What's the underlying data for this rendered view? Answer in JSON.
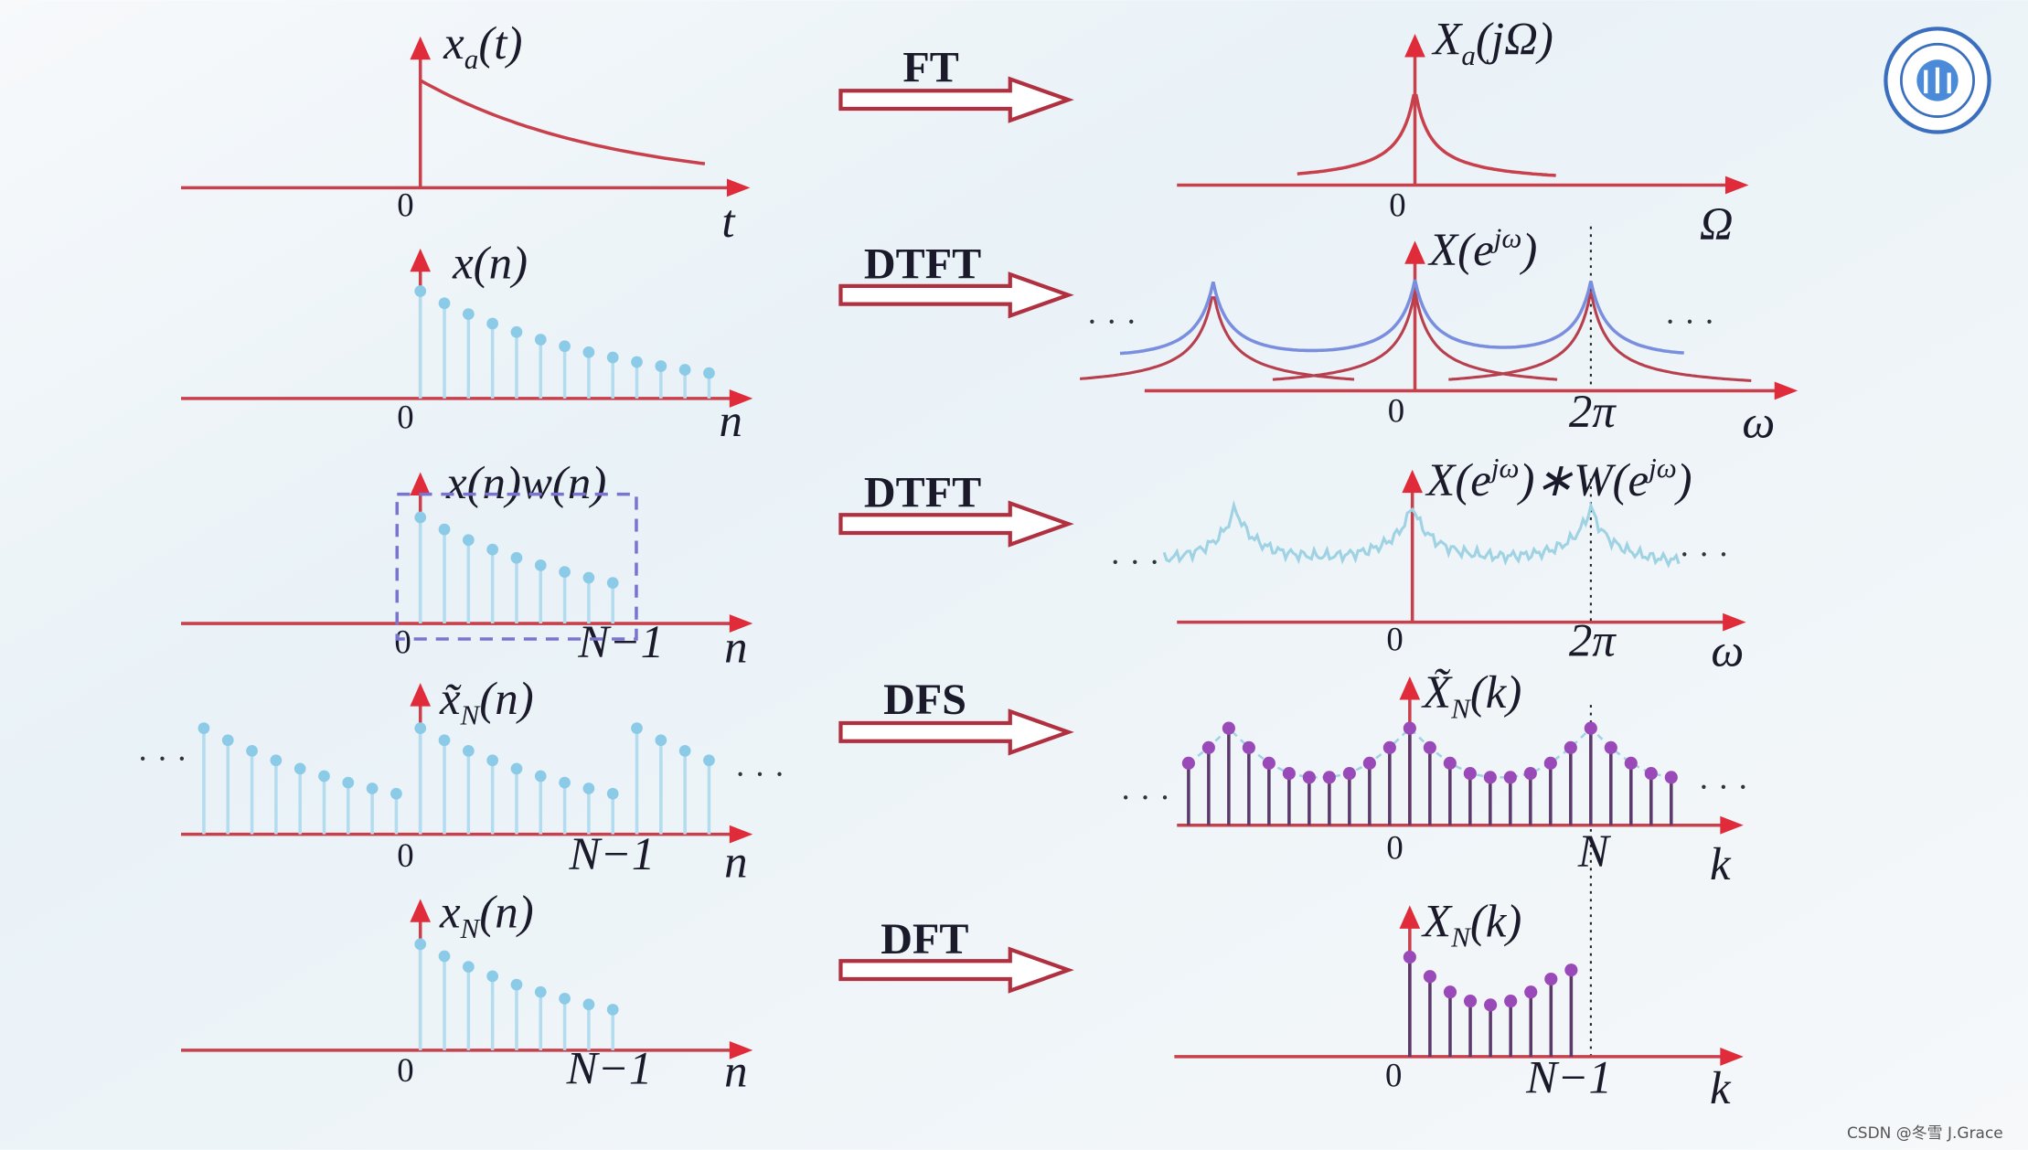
{
  "rows": [
    {
      "left": {
        "label": [
          {
            "text": "x",
            "style": "main"
          },
          {
            "text": "a",
            "style": "sub"
          },
          {
            "text": "(t)",
            "style": "main"
          }
        ],
        "axis": "t",
        "origin": "0"
      },
      "transform": "FT",
      "right": {
        "label": [
          {
            "text": "X",
            "style": "main"
          },
          {
            "text": "a",
            "style": "sub"
          },
          {
            "text": "(jΩ)",
            "style": "main"
          }
        ],
        "axis": "Ω",
        "origin": "0"
      }
    },
    {
      "left": {
        "label": [
          {
            "text": "x(n)",
            "style": "main"
          }
        ],
        "axis": "n",
        "origin": "0"
      },
      "transform": "DTFT",
      "right": {
        "label": [
          {
            "text": "X(e",
            "style": "main"
          },
          {
            "text": "jω",
            "style": "sup"
          },
          {
            "text": ")",
            "style": "main"
          }
        ],
        "axis": "ω",
        "origin": "0",
        "mark": "2π"
      }
    },
    {
      "left": {
        "label": [
          {
            "text": "x(n)w(n)",
            "style": "main"
          }
        ],
        "axis": "n",
        "origin": "0",
        "mark": "N−1"
      },
      "transform": "DTFT",
      "right": {
        "label": [
          {
            "text": "X(e",
            "style": "main"
          },
          {
            "text": "jω",
            "style": "sup"
          },
          {
            "text": ")∗W(e",
            "style": "main"
          },
          {
            "text": "jω",
            "style": "sup"
          },
          {
            "text": ")",
            "style": "main"
          }
        ],
        "axis": "ω",
        "origin": "0",
        "mark": "2π"
      }
    },
    {
      "left": {
        "label": [
          {
            "text": "x̃",
            "style": "main"
          },
          {
            "text": "N",
            "style": "sub"
          },
          {
            "text": "(n)",
            "style": "main"
          }
        ],
        "axis": "n",
        "origin": "0",
        "mark": "N−1"
      },
      "transform": "DFS",
      "right": {
        "label": [
          {
            "text": "X̃",
            "style": "main"
          },
          {
            "text": "N",
            "style": "sub"
          },
          {
            "text": "(k)",
            "style": "main"
          }
        ],
        "axis": "k",
        "origin": "0",
        "mark": "N"
      }
    },
    {
      "left": {
        "label": [
          {
            "text": "x",
            "style": "main"
          },
          {
            "text": "N",
            "style": "sub"
          },
          {
            "text": "(n)",
            "style": "main"
          }
        ],
        "axis": "n",
        "origin": "0",
        "mark": "N−1"
      },
      "transform": "DFT",
      "right": {
        "label": [
          {
            "text": "X",
            "style": "main"
          },
          {
            "text": "N",
            "style": "sub"
          },
          {
            "text": "(k)",
            "style": "main"
          }
        ],
        "axis": "k",
        "origin": "0",
        "mark": "N−1"
      }
    }
  ],
  "ellipsis": "· · ·",
  "watermark": "CSDN @冬雪 J.Grace"
}
